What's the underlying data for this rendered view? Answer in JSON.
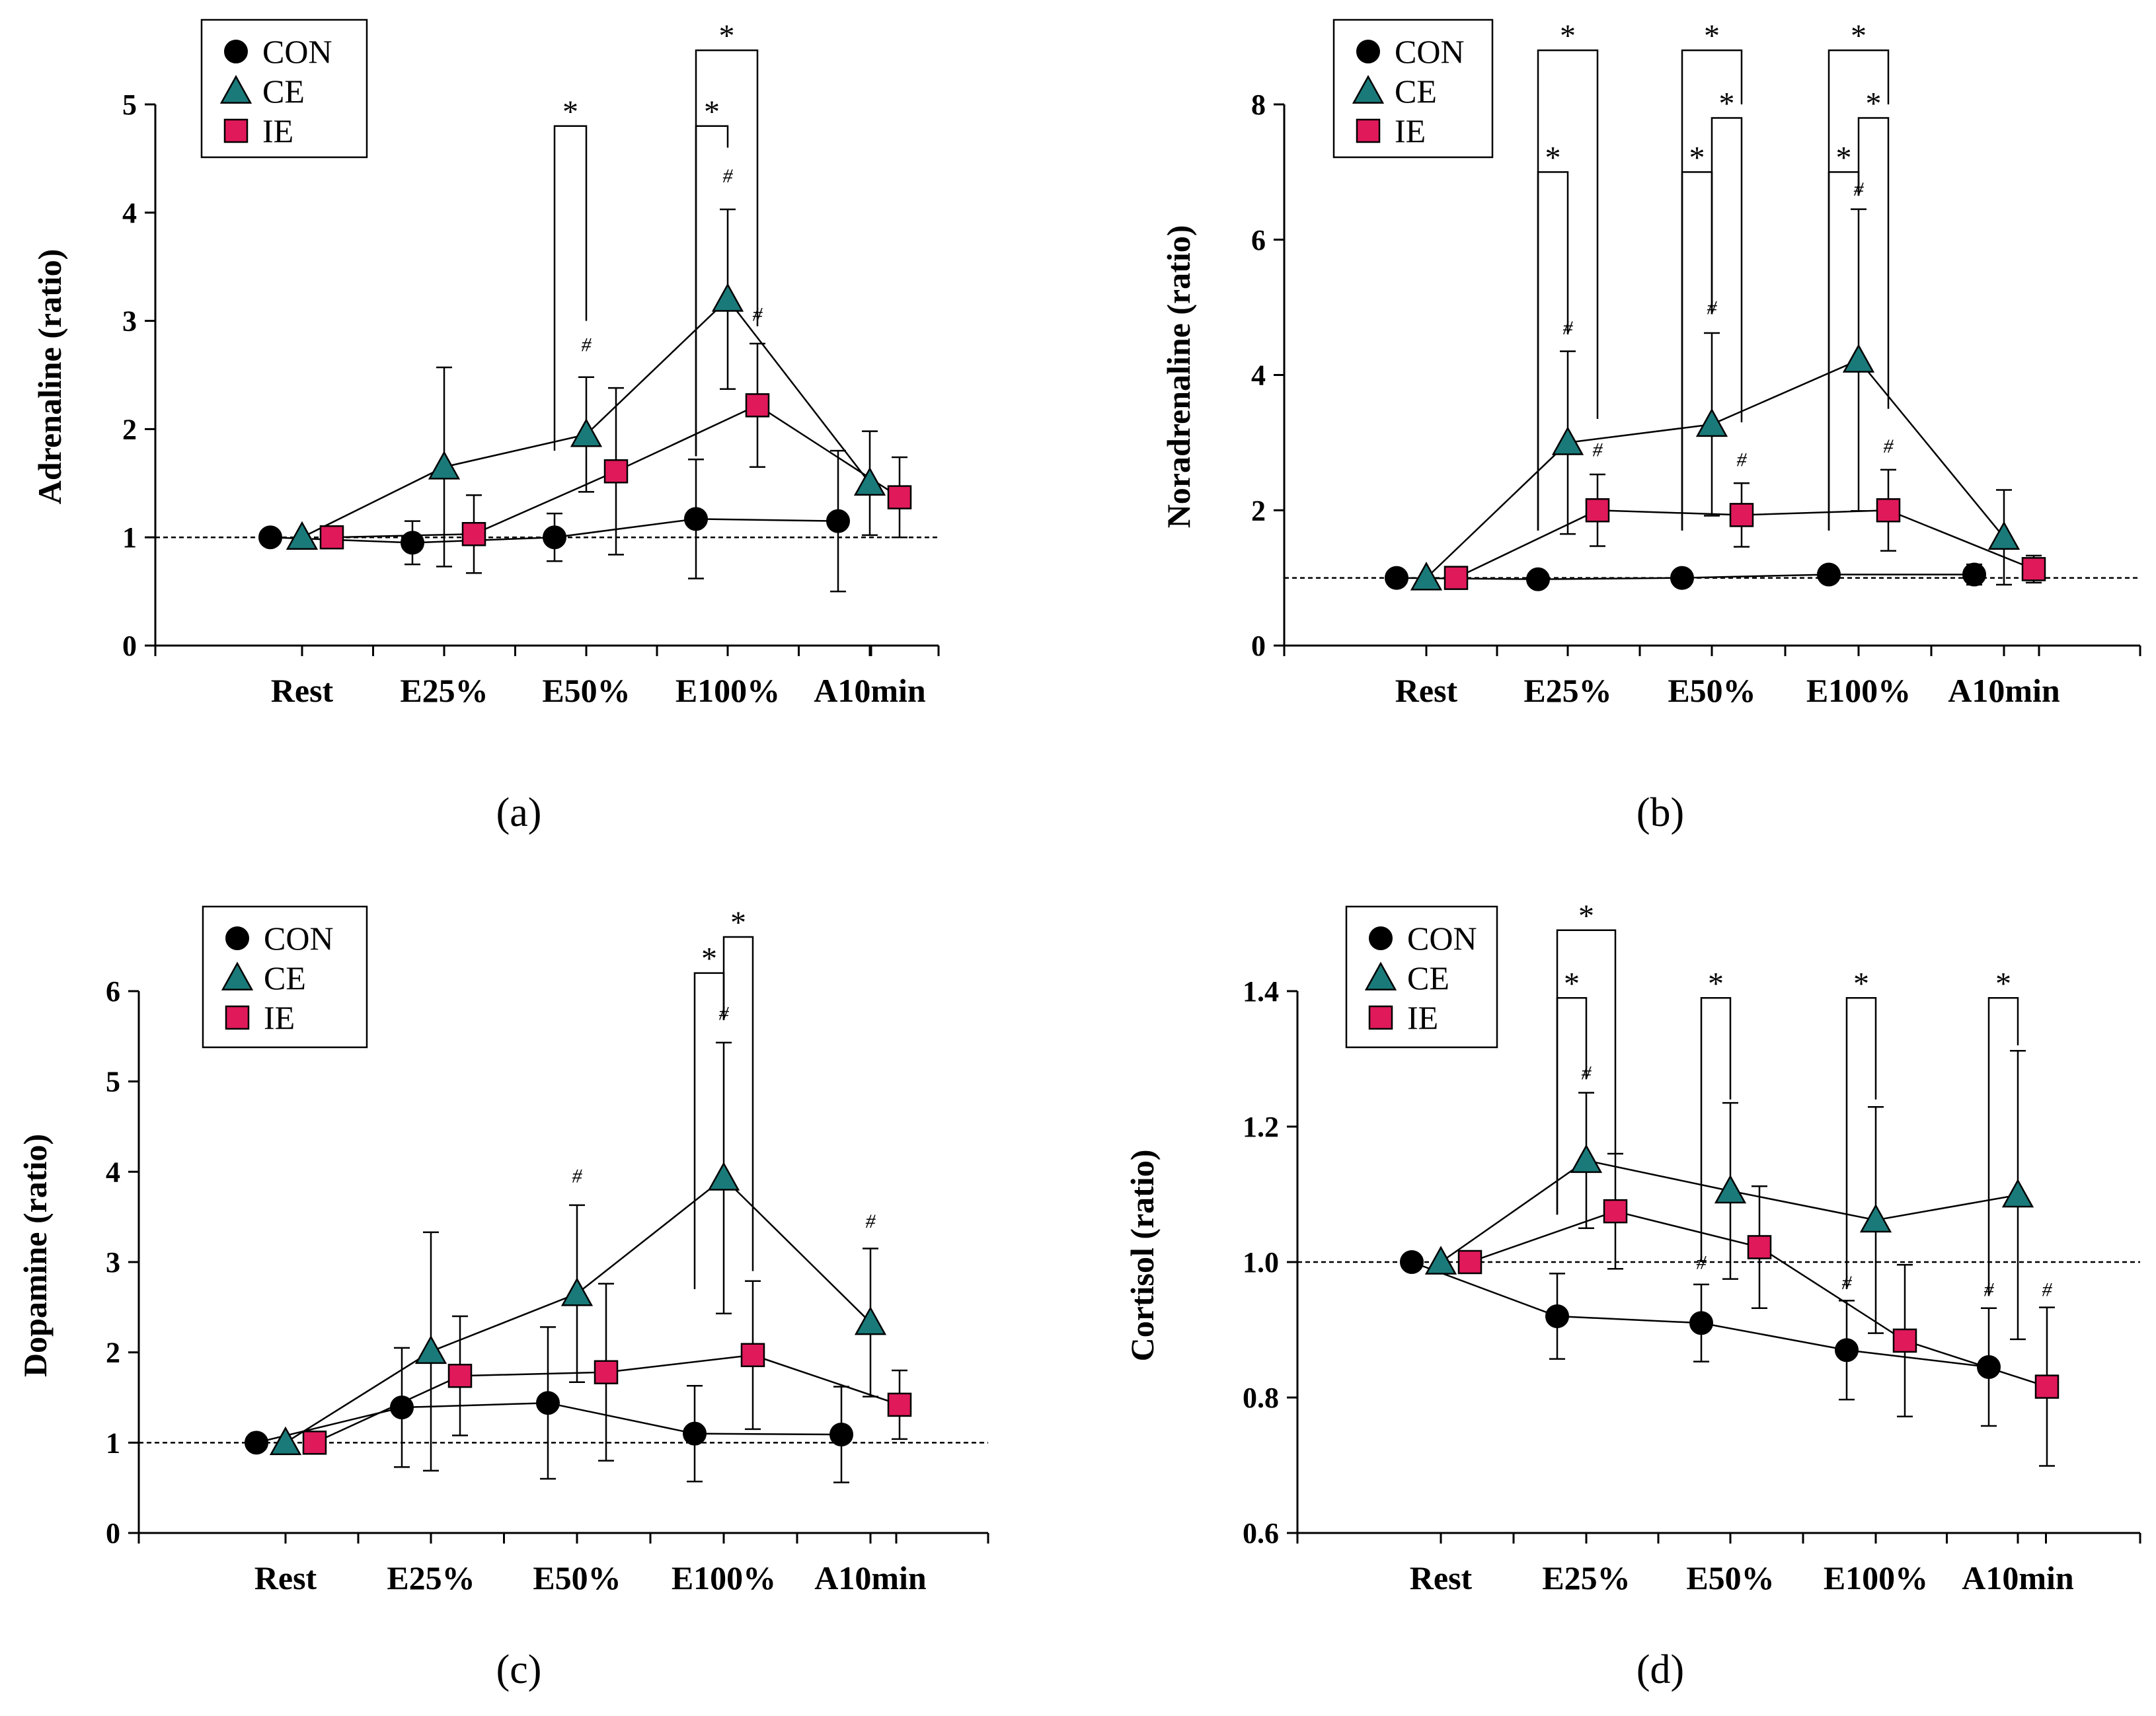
{
  "chart_data": [
    {
      "type": "line",
      "panel": "(a)",
      "ylabel": "Adrenaline (ratio)",
      "categories": [
        "Rest",
        "E25%",
        "E50%",
        "E100%",
        "A10min"
      ],
      "ylim": [
        0,
        5
      ],
      "yticks": [
        "0",
        "1",
        "2",
        "3",
        "4",
        "5"
      ],
      "baseline": 1,
      "legend": [
        "CON",
        "CE",
        "IE"
      ],
      "series": [
        {
          "name": "CON",
          "color": "#000000",
          "marker": "circle",
          "values": [
            1.0,
            0.95,
            1.0,
            1.17,
            1.15
          ],
          "err": [
            0,
            0.2,
            0.22,
            0.55,
            0.65
          ]
        },
        {
          "name": "CE",
          "color": "#1a7a7a",
          "marker": "triangle",
          "values": [
            1.0,
            1.65,
            1.95,
            3.2,
            1.5
          ],
          "err": [
            0,
            0.92,
            0.53,
            0.83,
            0.48
          ]
        },
        {
          "name": "IE",
          "color": "#e0195a",
          "marker": "square",
          "values": [
            1.0,
            1.03,
            1.61,
            2.22,
            1.37
          ],
          "err": [
            0,
            0.36,
            0.77,
            0.57,
            0.37
          ]
        }
      ],
      "hashes": [
        {
          "series": "CE",
          "cat": 2,
          "y": 2.72
        },
        {
          "series": "CE",
          "cat": 3,
          "y": 4.28
        },
        {
          "series": "IE",
          "cat": 3,
          "y": 3.0
        }
      ],
      "brackets": [
        {
          "from": "CON",
          "to": "CE",
          "cat": 2,
          "top": 4.8,
          "ends": [
            1.8,
            3.0
          ],
          "label": "*"
        },
        {
          "from": "CON",
          "to": "CE",
          "cat": 3,
          "top": 4.8,
          "ends": [
            1.75,
            4.6
          ],
          "label": "*"
        },
        {
          "from": "CON",
          "to": "IE",
          "cat": 3,
          "top": 5.5,
          "ends": [
            1.75,
            2.95
          ],
          "label": "*"
        }
      ],
      "caption": "(a)"
    },
    {
      "type": "line",
      "panel": "(b)",
      "ylabel": "Noradrenaline (ratio)",
      "categories": [
        "Rest",
        "E25%",
        "E50%",
        "E100%",
        "A10min"
      ],
      "ylim": [
        0,
        8
      ],
      "yticks": [
        "0",
        "2",
        "4",
        "6",
        "8"
      ],
      "baseline": 1,
      "legend": [
        "CON",
        "CE",
        "IE"
      ],
      "series": [
        {
          "name": "CON",
          "color": "#000000",
          "marker": "circle",
          "values": [
            1.0,
            0.98,
            1.0,
            1.05,
            1.05
          ],
          "err": [
            0,
            0.05,
            0.05,
            0.05,
            0.15
          ]
        },
        {
          "name": "CE",
          "color": "#1a7a7a",
          "marker": "triangle",
          "values": [
            1.0,
            3.0,
            3.27,
            4.22,
            1.6
          ],
          "err": [
            0,
            1.35,
            1.35,
            2.23,
            0.7
          ]
        },
        {
          "name": "IE",
          "color": "#e0195a",
          "marker": "square",
          "values": [
            1.0,
            2.0,
            1.93,
            2.0,
            1.13
          ],
          "err": [
            0,
            0.53,
            0.47,
            0.6,
            0.2
          ]
        }
      ],
      "hashes": [
        {
          "series": "CE",
          "cat": 1,
          "y": 4.6
        },
        {
          "series": "IE",
          "cat": 1,
          "y": 2.8
        },
        {
          "series": "CE",
          "cat": 2,
          "y": 4.9
        },
        {
          "series": "IE",
          "cat": 2,
          "y": 2.65
        },
        {
          "series": "CE",
          "cat": 3,
          "y": 6.65
        },
        {
          "series": "IE",
          "cat": 3,
          "y": 2.85
        }
      ],
      "brackets": [
        {
          "from": "CON",
          "to": "CE",
          "cat": 1,
          "top": 7.0,
          "ends": [
            1.7,
            4.6
          ],
          "label": "*"
        },
        {
          "from": "CON",
          "to": "IE",
          "cat": 1,
          "top": 8.8,
          "ends": [
            1.7,
            3.35
          ],
          "label": "*"
        },
        {
          "from": "CON",
          "to": "CE",
          "cat": 2,
          "top": 7.0,
          "ends": [
            1.7,
            4.9
          ],
          "label": "*"
        },
        {
          "from": "CE",
          "to": "IE",
          "cat": 2,
          "top": 7.8,
          "ends": [
            4.9,
            3.3
          ],
          "label": "*"
        },
        {
          "from": "CON",
          "to": "IE",
          "cat": 2,
          "top": 8.8,
          "ends": [
            1.7,
            8.0
          ],
          "label": "*"
        },
        {
          "from": "CON",
          "to": "CE",
          "cat": 3,
          "top": 7.0,
          "ends": [
            1.7,
            6.65
          ],
          "label": "*"
        },
        {
          "from": "CE",
          "to": "IE",
          "cat": 3,
          "top": 7.8,
          "ends": [
            6.65,
            3.5
          ],
          "label": "*"
        },
        {
          "from": "CON",
          "to": "IE",
          "cat": 3,
          "top": 8.8,
          "ends": [
            1.7,
            8.0
          ],
          "label": "*"
        }
      ],
      "caption": "(b)"
    },
    {
      "type": "line",
      "panel": "(c)",
      "ylabel": "Dopamine (ratio)",
      "categories": [
        "Rest",
        "E25%",
        "E50%",
        "E100%",
        "A10min"
      ],
      "ylim": [
        0,
        6
      ],
      "yticks": [
        "0",
        "1",
        "2",
        "3",
        "4",
        "5",
        "6"
      ],
      "baseline": 1,
      "legend": [
        "CON",
        "CE",
        "IE"
      ],
      "series": [
        {
          "name": "CON",
          "color": "#000000",
          "marker": "circle",
          "values": [
            1.0,
            1.39,
            1.44,
            1.1,
            1.09
          ],
          "err": [
            0,
            0.66,
            0.84,
            0.53,
            0.53
          ]
        },
        {
          "name": "CE",
          "color": "#1a7a7a",
          "marker": "triangle",
          "values": [
            1.0,
            2.01,
            2.65,
            3.93,
            2.33
          ],
          "err": [
            0,
            1.32,
            0.98,
            1.5,
            0.82
          ]
        },
        {
          "name": "IE",
          "color": "#e0195a",
          "marker": "square",
          "values": [
            1.0,
            1.74,
            1.78,
            1.97,
            1.42
          ],
          "err": [
            0,
            0.66,
            0.98,
            0.82,
            0.38
          ]
        }
      ],
      "hashes": [
        {
          "series": "CE",
          "cat": 2,
          "y": 3.88
        },
        {
          "series": "CE",
          "cat": 3,
          "y": 5.68
        },
        {
          "series": "CE",
          "cat": 4,
          "y": 3.38
        }
      ],
      "brackets": [
        {
          "from": "CON",
          "to": "CE",
          "cat": 3,
          "top": 6.2,
          "ends": [
            2.7,
            5.68
          ],
          "label": "*"
        },
        {
          "from": "CE",
          "to": "IE",
          "cat": 3,
          "top": 6.6,
          "ends": [
            5.68,
            2.9
          ],
          "label": "*"
        }
      ],
      "caption": "(c)"
    },
    {
      "type": "line",
      "panel": "(d)",
      "ylabel": "Cortisol (ratio)",
      "categories": [
        "Rest",
        "E25%",
        "E50%",
        "E100%",
        "A10min"
      ],
      "ylim": [
        0.6,
        1.4
      ],
      "yticks": [
        "0.6",
        "0.8",
        "1.0",
        "1.2",
        "1.4"
      ],
      "baseline": 1.0,
      "legend": [
        "CON",
        "CE",
        "IE"
      ],
      "series": [
        {
          "name": "CON",
          "color": "#000000",
          "marker": "circle",
          "values": [
            1.0,
            0.92,
            0.91,
            0.87,
            0.845
          ],
          "err": [
            0,
            0.063,
            0.057,
            0.073,
            0.087
          ]
        },
        {
          "name": "CE",
          "color": "#1a7a7a",
          "marker": "triangle",
          "values": [
            1.0,
            1.15,
            1.105,
            1.062,
            1.099
          ],
          "err": [
            0,
            0.1,
            0.13,
            0.167,
            0.213
          ]
        },
        {
          "name": "IE",
          "color": "#e0195a",
          "marker": "square",
          "values": [
            1.0,
            1.075,
            1.022,
            0.884,
            0.816
          ],
          "err": [
            0,
            0.085,
            0.09,
            0.112,
            0.117
          ]
        }
      ],
      "hashes": [
        {
          "series": "CE",
          "cat": 1,
          "y": 1.27
        },
        {
          "series": "CON",
          "cat": 2,
          "y": 0.99
        },
        {
          "series": "CON",
          "cat": 3,
          "y": 0.96
        },
        {
          "series": "CON",
          "cat": 4,
          "y": 0.95
        },
        {
          "series": "IE",
          "cat": 4,
          "y": 0.95
        }
      ],
      "brackets": [
        {
          "from": "CON",
          "to": "CE",
          "cat": 1,
          "top": 1.39,
          "ends": [
            1.07,
            1.27
          ],
          "label": "*"
        },
        {
          "from": "CON",
          "to": "IE",
          "cat": 1,
          "top": 1.49,
          "ends": [
            1.07,
            1.16
          ],
          "label": "*"
        },
        {
          "from": "CON",
          "to": "CE",
          "cat": 2,
          "top": 1.39,
          "ends": [
            1.0,
            1.24
          ],
          "label": "*"
        },
        {
          "from": "CON",
          "to": "CE",
          "cat": 3,
          "top": 1.39,
          "ends": [
            0.96,
            1.24
          ],
          "label": "*"
        },
        {
          "from": "CON",
          "to": "CE",
          "cat": 4,
          "top": 1.39,
          "ends": [
            0.95,
            1.32
          ],
          "label": "*"
        }
      ],
      "caption": "(d)"
    }
  ]
}
